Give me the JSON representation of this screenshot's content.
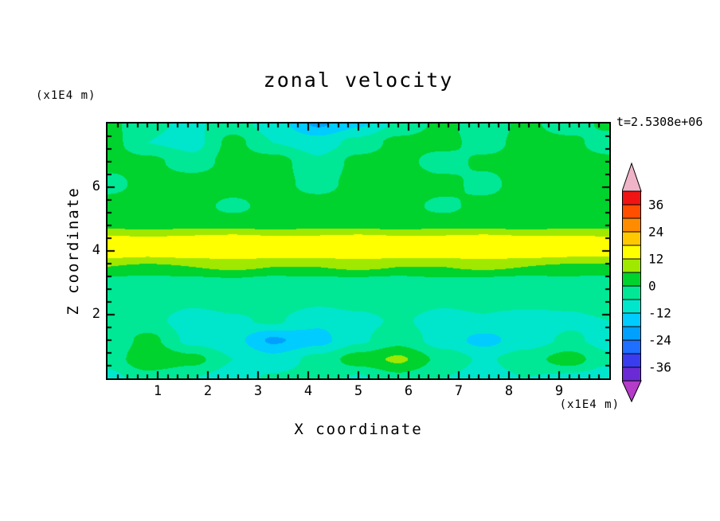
{
  "chart_data": {
    "type": "heatmap",
    "title": "zonal velocity",
    "xlabel": "X coordinate",
    "ylabel": "Z coordinate",
    "x_unit": "(x1E4 m)",
    "z_unit": "(x1E4 m)",
    "timestamp": "t=2.5308e+06",
    "x_range": [
      0,
      10
    ],
    "z_range": [
      0,
      8
    ],
    "x_ticks": [
      1,
      2,
      3,
      4,
      5,
      6,
      7,
      8,
      9
    ],
    "z_ticks": [
      2,
      4,
      6
    ],
    "levels": {
      "min": -42,
      "max": 42,
      "step": 6
    },
    "colorbar_labels": [
      36,
      24,
      12,
      0,
      -12,
      -24,
      -36
    ],
    "band_colors": [
      "#6a2bd6",
      "#3a3cf0",
      "#1e6eff",
      "#00a0ff",
      "#00ccff",
      "#00e6cc",
      "#00e896",
      "#00d22e",
      "#a0e800",
      "#ffff00",
      "#ffc800",
      "#ff8c00",
      "#ff4e00",
      "#f01414"
    ],
    "under_color": "#b43cc8",
    "over_color": "#f0b4c8",
    "x_coords": [
      0,
      0.8,
      1.7,
      2.5,
      3.3,
      4.2,
      5.0,
      5.8,
      6.7,
      7.5,
      8.3,
      9.2,
      10
    ],
    "z_coords": [
      8.0,
      7.4,
      6.8,
      6.1,
      5.4,
      4.8,
      4.35,
      3.95,
      3.5,
      3.0,
      2.4,
      1.8,
      1.2,
      0.6,
      0.0
    ],
    "values": [
      [
        2,
        -5,
        -7,
        -3,
        -9,
        -19,
        -13,
        -5,
        2,
        -6,
        2,
        -4,
        2
      ],
      [
        3,
        -6,
        -8,
        2,
        -6,
        -9,
        -4,
        2,
        3,
        -4,
        3,
        2,
        -4
      ],
      [
        3,
        2,
        -4,
        3,
        3,
        -5,
        2,
        3,
        -4,
        2,
        3,
        3,
        2
      ],
      [
        -3,
        3,
        4,
        4,
        3,
        -3,
        3,
        4,
        3,
        -3,
        4,
        3,
        3
      ],
      [
        4,
        4,
        3,
        -2,
        3,
        4,
        4,
        3,
        -2,
        3,
        4,
        4,
        3
      ],
      [
        5,
        4,
        5,
        5,
        4,
        5,
        5,
        4,
        5,
        5,
        4,
        5,
        5
      ],
      [
        14,
        13,
        14,
        15,
        14,
        14,
        15,
        14,
        14,
        15,
        14,
        14,
        13
      ],
      [
        15,
        14,
        15,
        16,
        15,
        15,
        16,
        15,
        15,
        16,
        15,
        14,
        14
      ],
      [
        6,
        5,
        6,
        7,
        6,
        6,
        7,
        6,
        6,
        7,
        6,
        5,
        5
      ],
      [
        -3,
        -4,
        -3,
        -2,
        -4,
        -3,
        -3,
        -4,
        -2,
        -3,
        -4,
        -3,
        -4
      ],
      [
        -4,
        -3,
        -5,
        -4,
        -3,
        -5,
        -4,
        -3,
        -5,
        -4,
        -3,
        -5,
        -4
      ],
      [
        -6,
        -4,
        -9,
        -7,
        -5,
        -11,
        -8,
        -5,
        -9,
        -7,
        -11,
        -7,
        -6
      ],
      [
        -5,
        2,
        -8,
        -10,
        -19,
        -14,
        -7,
        -2,
        -9,
        -14,
        -9,
        -5,
        -8
      ],
      [
        -4,
        5,
        2,
        -6,
        -10,
        -4,
        3,
        7,
        -2,
        -7,
        -3,
        3,
        -5
      ],
      [
        -8,
        -3,
        -6,
        -9,
        -5,
        -3,
        -7,
        -2,
        -6,
        -9,
        -6,
        -8,
        -10
      ]
    ]
  }
}
